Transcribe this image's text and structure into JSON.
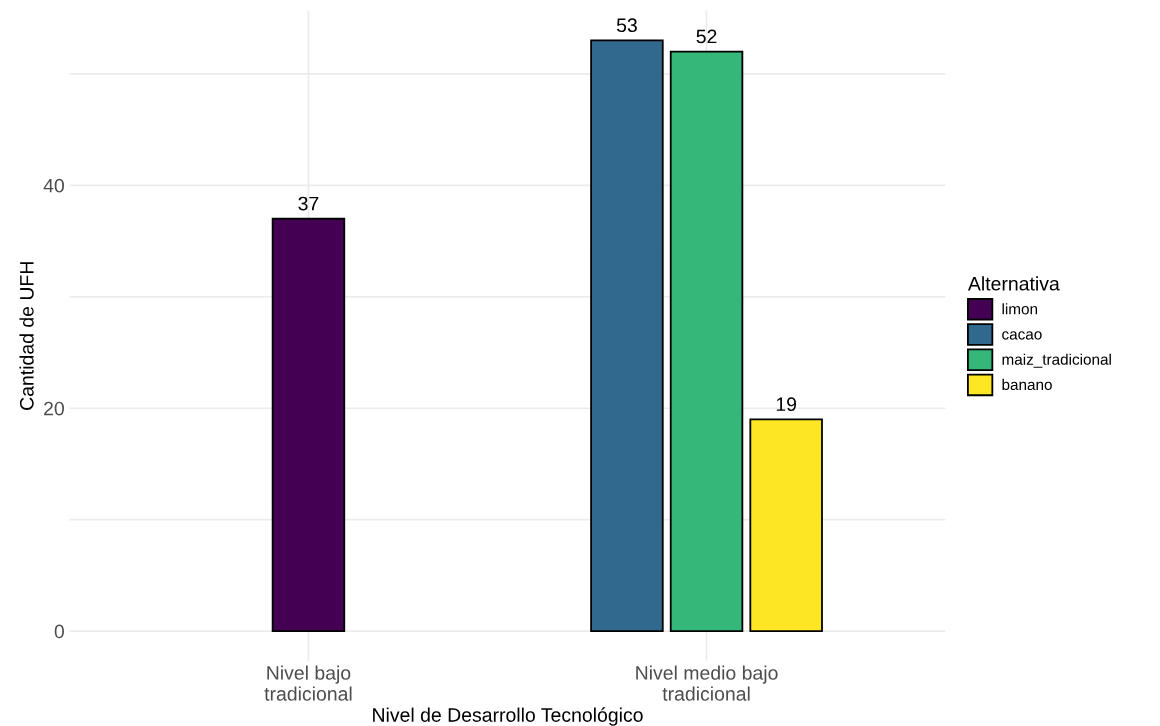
{
  "chart_data": {
    "type": "bar",
    "xlabel": "Nivel de Desarrollo Tecnológico",
    "ylabel": "Cantidad de UFH",
    "legend_title": "Alternativa",
    "categories": [
      "Nivel bajo\ntradicional",
      "Nivel medio bajo\ntradicional"
    ],
    "series": [
      {
        "name": "limon",
        "color": "#440154",
        "values": [
          37,
          null
        ]
      },
      {
        "name": "cacao",
        "color": "#31688e",
        "values": [
          null,
          53
        ]
      },
      {
        "name": "maiz_tradicional",
        "color": "#35b779",
        "values": [
          null,
          52
        ]
      },
      {
        "name": "banano",
        "color": "#fde725",
        "values": [
          null,
          19
        ]
      }
    ],
    "ylim": [
      -2.65,
      55.65
    ],
    "yticks": [
      0,
      {
        "value": 10,
        "label": null
      },
      20,
      {
        "value": 30,
        "label": null
      },
      40,
      {
        "value": 50,
        "label": null
      }
    ],
    "grid": true,
    "legend": "right",
    "data_labels": true
  }
}
